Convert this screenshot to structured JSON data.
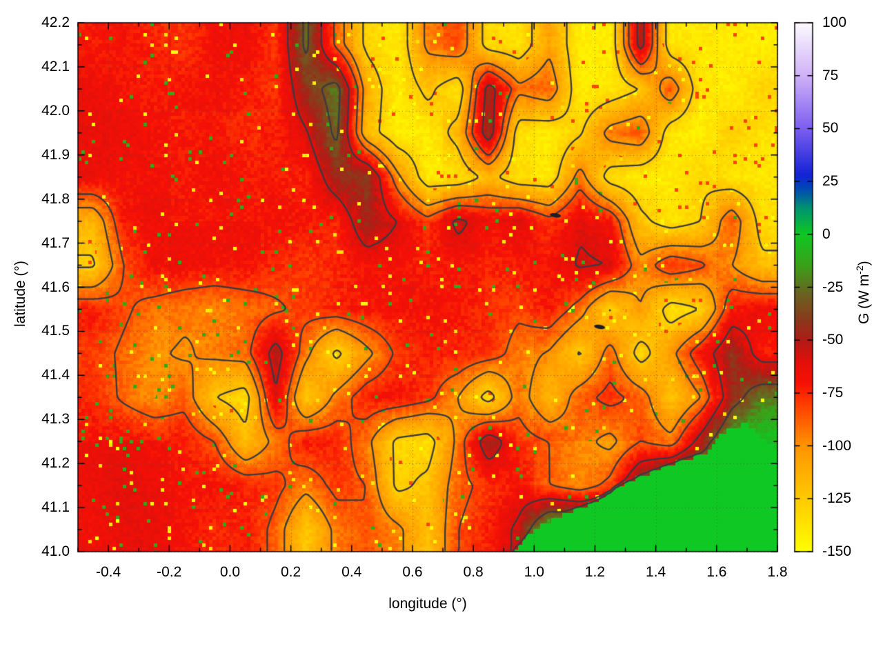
{
  "chart_data": {
    "type": "heatmap",
    "title": "",
    "xlabel": "longitude (°)",
    "ylabel": "latitude (°)",
    "x_range": [
      -0.5,
      1.8
    ],
    "y_range": [
      41.0,
      42.2
    ],
    "x_tick_labels": [
      "-0.4",
      "-0.2",
      "0.0",
      "0.2",
      "0.4",
      "0.6",
      "0.8",
      "1.0",
      "1.2",
      "1.4",
      "1.6",
      "1.8"
    ],
    "y_tick_labels": [
      "41.0",
      "41.1",
      "41.2",
      "41.3",
      "41.4",
      "41.5",
      "41.6",
      "41.7",
      "41.8",
      "41.9",
      "42.0",
      "42.1",
      "42.2"
    ],
    "x_minor_step": 0.1,
    "y_minor_step": 0.05,
    "grid_lines": true,
    "colorbar": {
      "label_prefix": "G (W m",
      "label_sup": "-2",
      "label_suffix": ")",
      "range": [
        -150,
        100
      ],
      "tick_labels": [
        "100",
        "75",
        "50",
        "25",
        "0",
        "-25",
        "-50",
        "-75",
        "-100",
        "-125",
        "-150"
      ],
      "palette": [
        [
          -150,
          255,
          255,
          0
        ],
        [
          -125,
          255,
          202,
          0
        ],
        [
          -100,
          255,
          148,
          0
        ],
        [
          -80,
          255,
          60,
          0
        ],
        [
          -70,
          246,
          16,
          6
        ],
        [
          -60,
          226,
          16,
          10
        ],
        [
          -50,
          176,
          28,
          22
        ],
        [
          -40,
          136,
          60,
          28
        ],
        [
          -28,
          106,
          100,
          32
        ],
        [
          -15,
          60,
          160,
          25
        ],
        [
          0,
          15,
          200,
          35
        ],
        [
          12,
          0,
          150,
          110
        ],
        [
          22,
          0,
          70,
          185
        ],
        [
          28,
          20,
          35,
          215
        ],
        [
          50,
          125,
          95,
          240
        ],
        [
          75,
          208,
          178,
          248
        ],
        [
          100,
          253,
          251,
          255
        ]
      ]
    },
    "contour_levels": [
      -125,
      -100,
      -85,
      -60,
      -35
    ],
    "grid": {
      "lon_start": -0.45,
      "lon_step": 0.1,
      "lat_start": 42.15,
      "lat_step": 0.1,
      "values": [
        [
          -72,
          -70,
          -74,
          -80,
          -70,
          -68,
          -80,
          -30,
          -90,
          -130,
          -140,
          -95,
          -85,
          -135,
          -140,
          -105,
          -140,
          -140,
          -50,
          -140,
          -140,
          -138,
          -140
        ],
        [
          -66,
          -70,
          -72,
          -72,
          -70,
          -74,
          -80,
          -45,
          -25,
          -110,
          -140,
          -120,
          -140,
          -50,
          -95,
          -85,
          -140,
          -138,
          -125,
          -85,
          -140,
          -140,
          -128
        ],
        [
          -65,
          -66,
          -70,
          -70,
          -70,
          -74,
          -76,
          -62,
          -30,
          -115,
          -140,
          -138,
          -118,
          -45,
          -138,
          -140,
          -128,
          -92,
          -84,
          -138,
          -140,
          -128,
          -138
        ],
        [
          -66,
          -70,
          -70,
          -70,
          -66,
          -70,
          -74,
          -76,
          -48,
          -35,
          -95,
          -138,
          -140,
          -120,
          -138,
          -138,
          -92,
          -135,
          -140,
          -138,
          -128,
          -140,
          -140
        ],
        [
          -115,
          -72,
          -66,
          -70,
          -70,
          -70,
          -70,
          -72,
          -76,
          -45,
          -60,
          -80,
          -55,
          -70,
          -62,
          -80,
          -62,
          -70,
          -120,
          -135,
          -125,
          -85,
          -135
        ],
        [
          -128,
          -85,
          -67,
          -70,
          -72,
          -72,
          -76,
          -80,
          -76,
          -70,
          -70,
          -74,
          -70,
          -75,
          -72,
          -70,
          -58,
          -60,
          -95,
          -72,
          -82,
          -100,
          -120
        ],
        [
          -72,
          -82,
          -92,
          -97,
          -100,
          -95,
          -88,
          -80,
          -76,
          -72,
          -70,
          -70,
          -72,
          -76,
          -82,
          -72,
          -92,
          -128,
          -100,
          -135,
          -125,
          -72,
          -66
        ],
        [
          -78,
          -88,
          -98,
          -102,
          -96,
          -92,
          -50,
          -95,
          -130,
          -105,
          -82,
          -76,
          -72,
          -76,
          -92,
          -102,
          -128,
          -92,
          -135,
          -105,
          -72,
          -40,
          -70
        ],
        [
          -74,
          -88,
          -98,
          -90,
          -125,
          -135,
          -60,
          -125,
          -95,
          -75,
          -72,
          -80,
          -100,
          -135,
          -90,
          -120,
          -90,
          -80,
          -90,
          -125,
          -100,
          -45,
          -20
        ],
        [
          -68,
          -66,
          -70,
          -74,
          -85,
          -120,
          -95,
          -72,
          -76,
          -95,
          -130,
          -135,
          -95,
          -45,
          -78,
          -85,
          -95,
          -105,
          -85,
          -95,
          -50,
          -5,
          0
        ],
        [
          -68,
          -64,
          -68,
          -70,
          -70,
          -74,
          -80,
          -95,
          -80,
          -85,
          -130,
          -120,
          -90,
          -80,
          -72,
          -85,
          -95,
          -80,
          -30,
          0,
          0,
          0,
          0
        ],
        [
          -70,
          -66,
          -66,
          -70,
          -76,
          -72,
          -90,
          -125,
          -95,
          -85,
          -95,
          -120,
          -85,
          -75,
          -55,
          0,
          0,
          0,
          0,
          0,
          0,
          0,
          0
        ]
      ]
    },
    "coastline": [
      [
        0.93,
        41.0
      ],
      [
        1.0,
        41.05
      ],
      [
        1.08,
        41.08
      ],
      [
        1.15,
        41.1
      ],
      [
        1.22,
        41.12
      ],
      [
        1.28,
        41.15
      ],
      [
        1.35,
        41.17
      ],
      [
        1.42,
        41.19
      ],
      [
        1.5,
        41.21
      ],
      [
        1.56,
        41.22
      ],
      [
        1.62,
        41.27
      ],
      [
        1.7,
        41.29
      ],
      [
        1.76,
        41.25
      ],
      [
        1.8,
        41.235
      ]
    ],
    "dark_spots": [
      [
        1.07,
        41.763
      ],
      [
        1.215,
        41.51
      ]
    ],
    "style": {
      "sea_value": 0,
      "contour_color": "#3a3a40",
      "grid_dot_color": "rgba(75,75,75,0.7)",
      "axis_color": "#000000",
      "background": "#ffffff"
    }
  }
}
